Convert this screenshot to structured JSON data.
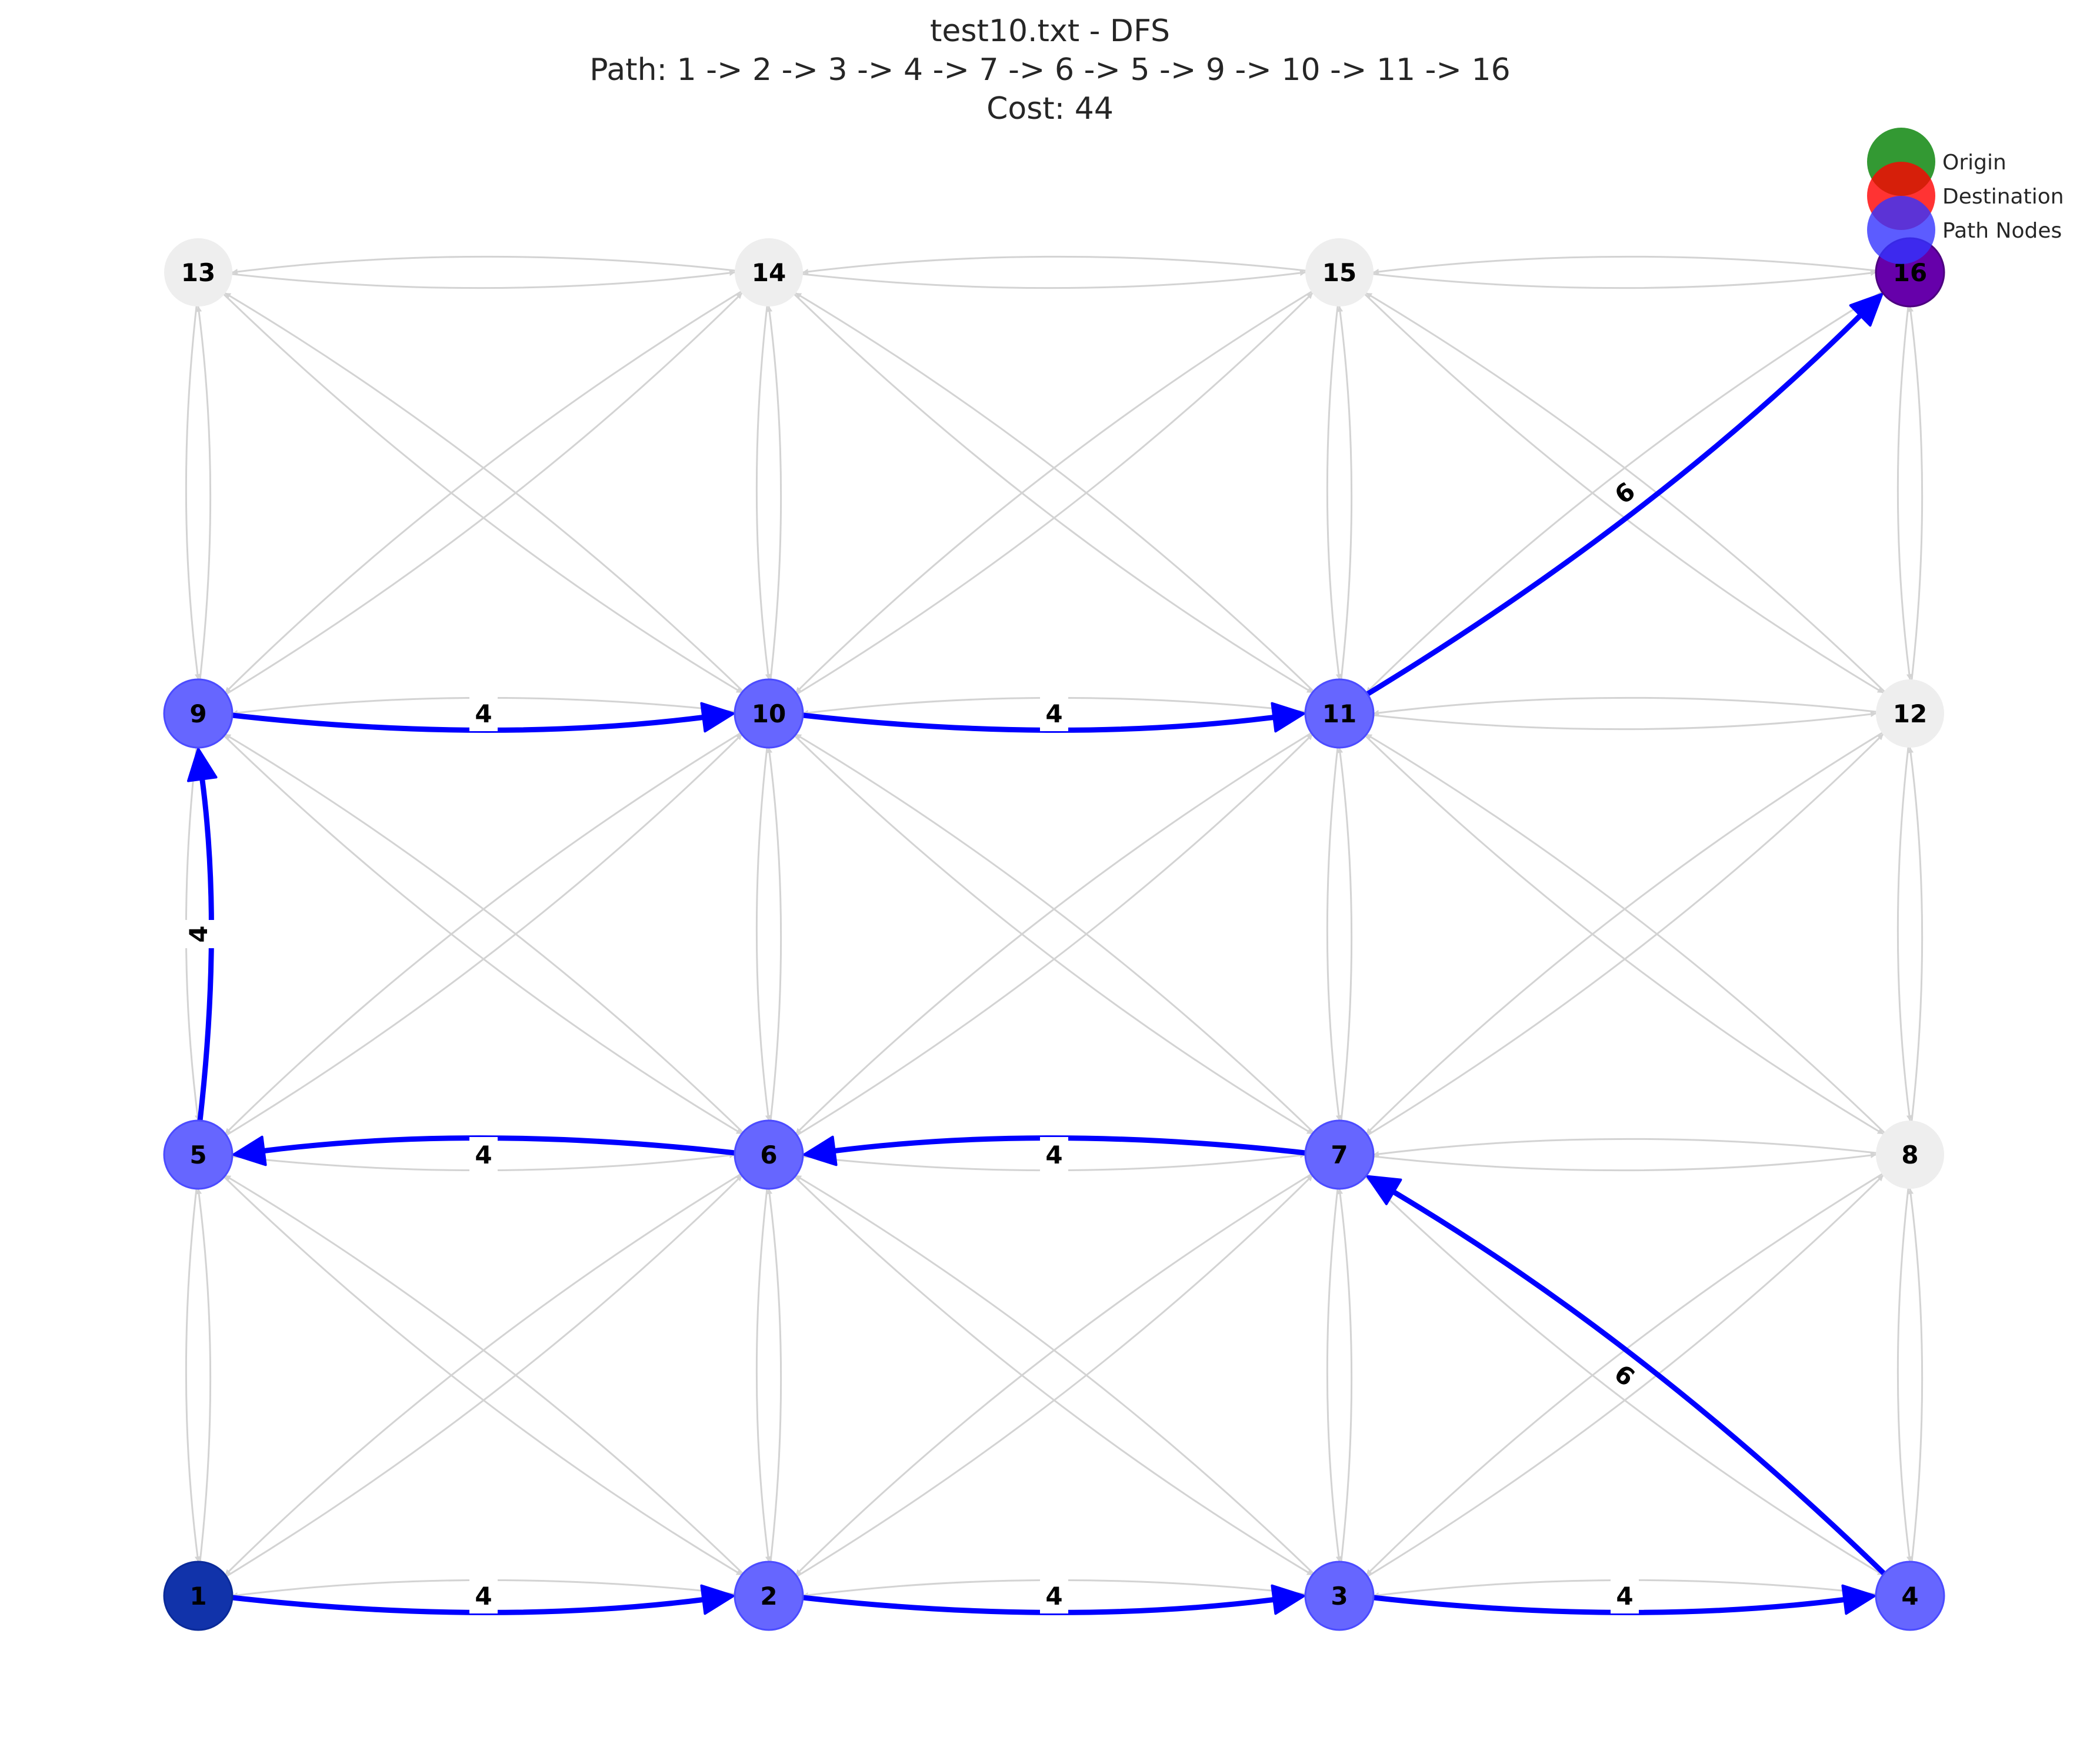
{
  "header": {
    "title": "test10.txt - DFS",
    "path_line": "Path: 1 -> 2 -> 3 -> 4 -> 7 -> 6 -> 5 -> 9 -> 10 -> 11 -> 16",
    "cost_line": "Cost: 44"
  },
  "legend": {
    "items": [
      {
        "label": "Origin",
        "color": "#008000"
      },
      {
        "label": "Destination",
        "color": "#ff0000"
      },
      {
        "label": "Path Nodes",
        "color": "#3333ff"
      }
    ]
  },
  "colors": {
    "path_edge": "#0000ff",
    "background_edge": "#d3d3d3",
    "path_node": "#6666ff",
    "origin_node": "#1133aa",
    "destination_node": "#6600aa",
    "plain_node": "#eeeeee"
  },
  "nodes": [
    {
      "id": "1",
      "label": "1",
      "row": 0,
      "col": 0,
      "role": "origin"
    },
    {
      "id": "2",
      "label": "2",
      "row": 0,
      "col": 1,
      "role": "path"
    },
    {
      "id": "3",
      "label": "3",
      "row": 0,
      "col": 2,
      "role": "path"
    },
    {
      "id": "4",
      "label": "4",
      "row": 0,
      "col": 3,
      "role": "path"
    },
    {
      "id": "5",
      "label": "5",
      "row": 1,
      "col": 0,
      "role": "path"
    },
    {
      "id": "6",
      "label": "6",
      "row": 1,
      "col": 1,
      "role": "path"
    },
    {
      "id": "7",
      "label": "7",
      "row": 1,
      "col": 2,
      "role": "path"
    },
    {
      "id": "8",
      "label": "8",
      "row": 1,
      "col": 3,
      "role": "plain"
    },
    {
      "id": "9",
      "label": "9",
      "row": 2,
      "col": 0,
      "role": "path"
    },
    {
      "id": "10",
      "label": "10",
      "row": 2,
      "col": 1,
      "role": "path"
    },
    {
      "id": "11",
      "label": "11",
      "row": 2,
      "col": 2,
      "role": "path"
    },
    {
      "id": "12",
      "label": "12",
      "row": 2,
      "col": 3,
      "role": "plain"
    },
    {
      "id": "13",
      "label": "13",
      "row": 3,
      "col": 0,
      "role": "plain"
    },
    {
      "id": "14",
      "label": "14",
      "row": 3,
      "col": 1,
      "role": "plain"
    },
    {
      "id": "15",
      "label": "15",
      "row": 3,
      "col": 2,
      "role": "plain"
    },
    {
      "id": "16",
      "label": "16",
      "row": 3,
      "col": 3,
      "role": "destination"
    }
  ],
  "path_edges": [
    {
      "from": "1",
      "to": "2",
      "weight": "4"
    },
    {
      "from": "2",
      "to": "3",
      "weight": "4"
    },
    {
      "from": "3",
      "to": "4",
      "weight": "4"
    },
    {
      "from": "4",
      "to": "7",
      "weight": "6"
    },
    {
      "from": "7",
      "to": "6",
      "weight": "4"
    },
    {
      "from": "6",
      "to": "5",
      "weight": "4"
    },
    {
      "from": "5",
      "to": "9",
      "weight": "4"
    },
    {
      "from": "9",
      "to": "10",
      "weight": "4"
    },
    {
      "from": "10",
      "to": "11",
      "weight": "4"
    },
    {
      "from": "11",
      "to": "16",
      "weight": "6"
    }
  ],
  "grid_edges_bidirectional": true
}
